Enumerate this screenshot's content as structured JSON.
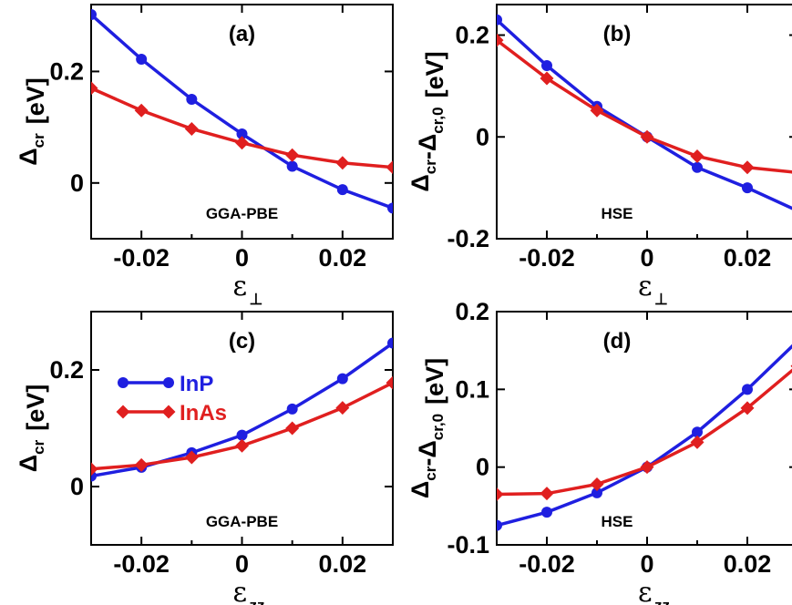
{
  "colors": {
    "InP": "#1f1fe0",
    "InAs": "#e01f1f",
    "axis": "#000000",
    "background": "#ffffff"
  },
  "chart_data": [
    {
      "type": "line",
      "panel": "(a)",
      "method": "GGA-PBE",
      "xlabel": {
        "symbol": "ε",
        "subscript": "⊥",
        "unit": ""
      },
      "ylabel": {
        "parts": [
          {
            "symbol": "Δ",
            "subscript": "cr"
          }
        ],
        "unit": "[eV]"
      },
      "xlim": [
        -0.03,
        0.03
      ],
      "ylim": [
        -0.1,
        0.32
      ],
      "xticks": [
        -0.02,
        0,
        0.02
      ],
      "xtick_labels": [
        "-0.02",
        "0",
        "0.02"
      ],
      "yticks": [
        0,
        0.2
      ],
      "ytick_labels": [
        "0",
        "0.2"
      ],
      "x": [
        -0.03,
        -0.02,
        -0.01,
        0,
        0.01,
        0.02,
        0.03
      ],
      "series": [
        {
          "name": "InP",
          "color": "#1f1fe0",
          "marker": "circle",
          "values": [
            0.302,
            0.222,
            0.15,
            0.088,
            0.03,
            -0.012,
            -0.045
          ]
        },
        {
          "name": "InAs",
          "color": "#e01f1f",
          "marker": "diamond",
          "values": [
            0.17,
            0.13,
            0.097,
            0.072,
            0.05,
            0.036,
            0.028
          ]
        }
      ],
      "legend": null
    },
    {
      "type": "line",
      "panel": "(b)",
      "method": "HSE",
      "xlabel": {
        "symbol": "ε",
        "subscript": "⊥",
        "unit": ""
      },
      "ylabel": {
        "parts": [
          {
            "symbol": "Δ",
            "subscript": "cr"
          },
          {
            "symbol": "-Δ",
            "subscript": "cr,0"
          }
        ],
        "unit": "[eV]"
      },
      "xlim": [
        -0.03,
        0.03
      ],
      "ylim": [
        -0.2,
        0.26
      ],
      "xticks": [
        -0.02,
        0,
        0.02
      ],
      "xtick_labels": [
        "-0.02",
        "0",
        "0.02"
      ],
      "yticks": [
        -0.2,
        0,
        0.2
      ],
      "ytick_labels": [
        "-0.2",
        "0",
        "0.2"
      ],
      "x": [
        -0.03,
        -0.02,
        -0.01,
        0,
        0.01,
        0.02,
        0.03
      ],
      "series": [
        {
          "name": "InP",
          "color": "#1f1fe0",
          "marker": "circle",
          "values": [
            0.23,
            0.14,
            0.06,
            0.0,
            -0.06,
            -0.1,
            -0.145
          ]
        },
        {
          "name": "InAs",
          "color": "#e01f1f",
          "marker": "diamond",
          "values": [
            0.19,
            0.115,
            0.052,
            0.0,
            -0.038,
            -0.06,
            -0.07
          ]
        }
      ],
      "legend": null
    },
    {
      "type": "line",
      "panel": "(c)",
      "method": "GGA-PBE",
      "xlabel": {
        "symbol": "ε",
        "subscript": "zz",
        "unit": ""
      },
      "ylabel": {
        "parts": [
          {
            "symbol": "Δ",
            "subscript": "cr"
          }
        ],
        "unit": "[eV]"
      },
      "xlim": [
        -0.03,
        0.03
      ],
      "ylim": [
        -0.1,
        0.3
      ],
      "xticks": [
        -0.02,
        0,
        0.02
      ],
      "xtick_labels": [
        "-0.02",
        "0",
        "0.02"
      ],
      "yticks": [
        0,
        0.2
      ],
      "ytick_labels": [
        "0",
        "0.2"
      ],
      "x": [
        -0.03,
        -0.02,
        -0.01,
        0,
        0.01,
        0.02,
        0.03
      ],
      "series": [
        {
          "name": "InP",
          "color": "#1f1fe0",
          "marker": "circle",
          "values": [
            0.018,
            0.033,
            0.058,
            0.088,
            0.133,
            0.185,
            0.246
          ]
        },
        {
          "name": "InAs",
          "color": "#e01f1f",
          "marker": "diamond",
          "values": [
            0.03,
            0.037,
            0.05,
            0.07,
            0.1,
            0.135,
            0.178
          ]
        }
      ],
      "legend": {
        "placement": "top-left",
        "entries": [
          "InP",
          "InAs"
        ]
      }
    },
    {
      "type": "line",
      "panel": "(d)",
      "method": "HSE",
      "xlabel": {
        "symbol": "ε",
        "subscript": "zz",
        "unit": ""
      },
      "ylabel": {
        "parts": [
          {
            "symbol": "Δ",
            "subscript": "cr"
          },
          {
            "symbol": "-Δ",
            "subscript": "cr,0"
          }
        ],
        "unit": "[eV]"
      },
      "xlim": [
        -0.03,
        0.03
      ],
      "ylim": [
        -0.1,
        0.2
      ],
      "xticks": [
        -0.02,
        0,
        0.02
      ],
      "xtick_labels": [
        "-0.02",
        "0",
        "0.02"
      ],
      "yticks": [
        -0.1,
        0,
        0.1,
        0.2
      ],
      "ytick_labels": [
        "-0.1",
        "0",
        "0.1",
        "0.2"
      ],
      "x": [
        -0.03,
        -0.02,
        -0.01,
        0,
        0.01,
        0.02,
        0.03
      ],
      "series": [
        {
          "name": "InP",
          "color": "#1f1fe0",
          "marker": "circle",
          "values": [
            -0.075,
            -0.058,
            -0.033,
            0.0,
            0.045,
            0.1,
            0.162
          ]
        },
        {
          "name": "InAs",
          "color": "#e01f1f",
          "marker": "diamond",
          "values": [
            -0.035,
            -0.034,
            -0.022,
            0.0,
            0.032,
            0.076,
            0.13
          ]
        }
      ],
      "legend": null
    }
  ]
}
